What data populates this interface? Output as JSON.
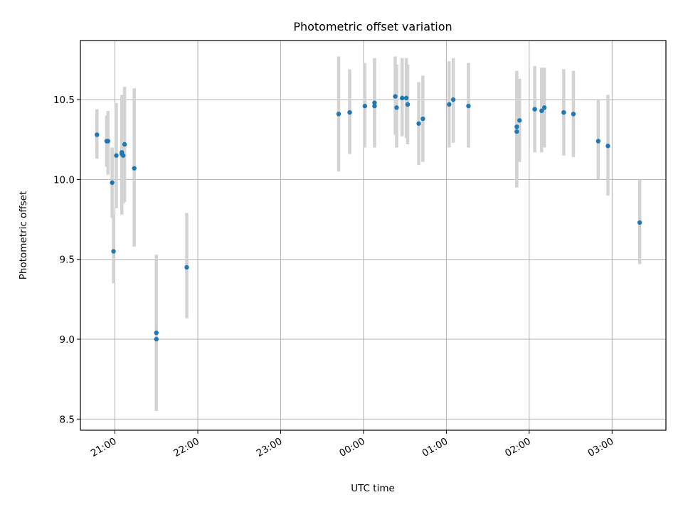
{
  "chart_data": {
    "type": "scatter",
    "title": "Photometric offset variation",
    "xlabel": "UTC time",
    "ylabel": "Photometric offset",
    "x_axis_type": "time",
    "x_range": [
      "20:35",
      "03:39"
    ],
    "ylim": [
      8.43,
      10.87
    ],
    "x_ticks": [
      "21:00",
      "22:00",
      "23:00",
      "00:00",
      "01:00",
      "02:00",
      "03:00"
    ],
    "y_ticks": [
      8.5,
      9.0,
      9.5,
      10.0,
      10.5
    ],
    "y_tick_labels": [
      "8.5",
      "9.0",
      "9.5",
      "10.0",
      "10.5"
    ],
    "grid": true,
    "point_color": "#1f77b4",
    "errorbar_color": "#d3d3d3",
    "series": [
      {
        "points": [
          {
            "x": "20:47",
            "y": 10.28,
            "lo": 10.13,
            "hi": 10.44
          },
          {
            "x": "20:55",
            "y": 10.24,
            "lo": 10.03,
            "hi": 10.43
          },
          {
            "x": "20:54",
            "y": 10.24,
            "lo": 10.08,
            "hi": 10.4
          },
          {
            "x": "20:58",
            "y": 9.98,
            "lo": 9.76,
            "hi": 10.2
          },
          {
            "x": "20:59",
            "y": 9.55,
            "lo": 9.35,
            "hi": 9.78
          },
          {
            "x": "21:01",
            "y": 10.15,
            "lo": 9.82,
            "hi": 10.48
          },
          {
            "x": "21:05",
            "y": 10.17,
            "lo": 9.82,
            "hi": 10.52
          },
          {
            "x": "21:05",
            "y": 10.16,
            "lo": 9.78,
            "hi": 10.53
          },
          {
            "x": "21:06",
            "y": 10.15,
            "lo": 9.85,
            "hi": 10.5
          },
          {
            "x": "21:07",
            "y": 10.22,
            "lo": 9.86,
            "hi": 10.58
          },
          {
            "x": "21:14",
            "y": 10.07,
            "lo": 9.58,
            "hi": 10.57
          },
          {
            "x": "21:30",
            "y": 9.04,
            "lo": 8.55,
            "hi": 9.53
          },
          {
            "x": "21:30",
            "y": 9.0,
            "lo": 8.56,
            "hi": 9.44
          },
          {
            "x": "21:52",
            "y": 9.45,
            "lo": 9.13,
            "hi": 9.79
          },
          {
            "x": "23:42",
            "y": 10.41,
            "lo": 10.05,
            "hi": 10.77
          },
          {
            "x": "23:50",
            "y": 10.42,
            "lo": 10.16,
            "hi": 10.69
          },
          {
            "x": "00:01",
            "y": 10.46,
            "lo": 10.2,
            "hi": 10.73
          },
          {
            "x": "00:08",
            "y": 10.48,
            "lo": 10.2,
            "hi": 10.74
          },
          {
            "x": "00:08",
            "y": 10.46,
            "lo": 10.21,
            "hi": 10.76
          },
          {
            "x": "00:23",
            "y": 10.52,
            "lo": 10.28,
            "hi": 10.77
          },
          {
            "x": "00:24",
            "y": 10.45,
            "lo": 10.2,
            "hi": 10.72
          },
          {
            "x": "00:28",
            "y": 10.51,
            "lo": 10.27,
            "hi": 10.76
          },
          {
            "x": "00:31",
            "y": 10.51,
            "lo": 10.26,
            "hi": 10.76
          },
          {
            "x": "00:32",
            "y": 10.47,
            "lo": 10.22,
            "hi": 10.72
          },
          {
            "x": "00:40",
            "y": 10.35,
            "lo": 10.09,
            "hi": 10.61
          },
          {
            "x": "00:43",
            "y": 10.38,
            "lo": 10.11,
            "hi": 10.65
          },
          {
            "x": "01:02",
            "y": 10.47,
            "lo": 10.2,
            "hi": 10.74
          },
          {
            "x": "01:05",
            "y": 10.5,
            "lo": 10.23,
            "hi": 10.76
          },
          {
            "x": "01:16",
            "y": 10.46,
            "lo": 10.2,
            "hi": 10.73
          },
          {
            "x": "01:51",
            "y": 10.33,
            "lo": 9.95,
            "hi": 10.68
          },
          {
            "x": "01:51",
            "y": 10.3,
            "lo": 9.96,
            "hi": 10.65
          },
          {
            "x": "01:53",
            "y": 10.37,
            "lo": 10.11,
            "hi": 10.63
          },
          {
            "x": "02:04",
            "y": 10.44,
            "lo": 10.17,
            "hi": 10.71
          },
          {
            "x": "02:09",
            "y": 10.43,
            "lo": 10.17,
            "hi": 10.7
          },
          {
            "x": "02:11",
            "y": 10.45,
            "lo": 10.2,
            "hi": 10.7
          },
          {
            "x": "02:25",
            "y": 10.42,
            "lo": 10.15,
            "hi": 10.69
          },
          {
            "x": "02:32",
            "y": 10.41,
            "lo": 10.14,
            "hi": 10.68
          },
          {
            "x": "02:50",
            "y": 10.24,
            "lo": 10.0,
            "hi": 10.5
          },
          {
            "x": "02:57",
            "y": 10.21,
            "lo": 9.9,
            "hi": 10.53
          },
          {
            "x": "03:20",
            "y": 9.73,
            "lo": 9.47,
            "hi": 10.0
          }
        ]
      }
    ]
  }
}
